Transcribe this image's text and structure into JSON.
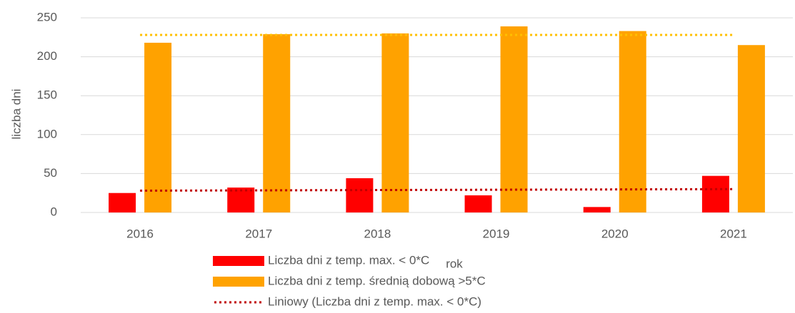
{
  "chart_data": {
    "type": "bar",
    "x_label": "rok",
    "y_label": "liczba dni",
    "categories": [
      "2016",
      "2017",
      "2018",
      "2019",
      "2020",
      "2021"
    ],
    "series": [
      {
        "name": "Liczba dni z temp. max. < 0*C",
        "color": "#ff0000",
        "values": [
          25,
          32,
          44,
          22,
          7,
          47
        ]
      },
      {
        "name": "Liczba dni z temp. średnią dobową >5*C",
        "color": "#ffa200",
        "values": [
          218,
          229,
          230,
          239,
          233,
          215
        ]
      }
    ],
    "trend_lines": [
      {
        "name": "Liniowy (Liczba dni z temp. max. < 0*C)",
        "color": "#c00000",
        "values": [
          28,
          28.4,
          28.8,
          29.2,
          29.6,
          30
        ]
      },
      {
        "color": "#ffc000",
        "values": [
          228,
          228,
          228,
          228,
          228,
          228
        ]
      }
    ],
    "ylim": [
      0,
      250
    ],
    "yticks": [
      0,
      50,
      100,
      150,
      200,
      250
    ],
    "grid": true
  }
}
